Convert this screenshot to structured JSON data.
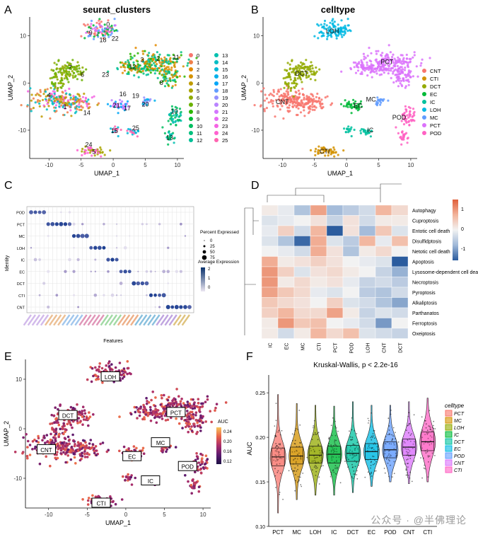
{
  "panels": {
    "A": {
      "letter": "A",
      "title": "seurat_clusters",
      "xlabel": "UMAP_1",
      "ylabel": "UMAP_2",
      "xticks": [
        "-10",
        "-5",
        "0",
        "5",
        "10"
      ],
      "yticks": [
        "10",
        "0",
        "-10"
      ],
      "legend": [
        "0",
        "1",
        "2",
        "3",
        "4",
        "5",
        "6",
        "7",
        "8",
        "9",
        "10",
        "11",
        "12",
        "13",
        "14",
        "15",
        "16",
        "17",
        "18",
        "19",
        "20",
        "21",
        "22",
        "23",
        "24",
        "25"
      ],
      "legend_colors": [
        "#F8766D",
        "#EF7F49",
        "#E38900",
        "#D49200",
        "#C09B00",
        "#A9A400",
        "#8FAA00",
        "#6BB100",
        "#2CB600",
        "#00BA38",
        "#00BD5F",
        "#00BF7D",
        "#00C097",
        "#00C0AF",
        "#00BDC4",
        "#00B8D8",
        "#00B0EB",
        "#00A6F8",
        "#619CFF",
        "#9590FF",
        "#B983FF",
        "#D376FF",
        "#E76BF3",
        "#F564E3",
        "#FF61CF",
        "#FF64B0"
      ],
      "labels": [
        "0",
        "22",
        "9",
        "18",
        "3",
        "2",
        "11",
        "12",
        "7",
        "6",
        "23",
        "8",
        "4",
        "1",
        "16",
        "19",
        "21",
        "17",
        "20",
        "14",
        "10",
        "25",
        "15",
        "13",
        "24",
        "5"
      ]
    },
    "B": {
      "letter": "B",
      "title": "celltype",
      "xlabel": "UMAP_1",
      "ylabel": "UMAP_2",
      "xticks": [
        "-10",
        "-5",
        "0",
        "5",
        "10"
      ],
      "yticks": [
        "10",
        "0",
        "-10"
      ],
      "legend": [
        "CNT",
        "CTI",
        "DCT",
        "EC",
        "IC",
        "LOH",
        "MC",
        "PCT",
        "POD"
      ],
      "legend_colors": [
        "#F8766D",
        "#D39200",
        "#93AA00",
        "#00BA38",
        "#00C19F",
        "#00B9E3",
        "#619CFF",
        "#DB72FB",
        "#FF61C3"
      ],
      "labels": [
        "LOH",
        "PCT",
        "DCT",
        "CNT",
        "MC",
        "EC",
        "POD",
        "IC",
        "CTI"
      ]
    },
    "C": {
      "letter": "C",
      "ylabel": "Identity",
      "xlabel": "Features",
      "rows": [
        "POD",
        "PCT",
        "MC",
        "LOH",
        "IC",
        "EC",
        "DCT",
        "CTI",
        "CNT"
      ],
      "legend_pct_title": "Percent Expressed",
      "legend_pct_values": [
        "0",
        "25",
        "50",
        "75"
      ],
      "legend_expr_title": "Average Expression",
      "legend_expr_values": [
        "2",
        "1",
        "0"
      ]
    },
    "D": {
      "letter": "D",
      "rows": [
        "Autophagy",
        "Cuproptosis",
        "Entotic cell death",
        "Disulfidptosis",
        "Netotic cell death",
        "Apoptosis",
        "Lysosome-dependent cell death",
        "Necroptosis",
        "Pyroptosis",
        "Alkaliptosis",
        "Parthanatos",
        "Ferroptosis",
        "Oxeiptosis"
      ],
      "cols": [
        "IC",
        "EC",
        "MC",
        "CTI",
        "PCT",
        "POD",
        "LOH",
        "CNT",
        "DCT"
      ],
      "legend_values": [
        "1",
        "0",
        "-1"
      ]
    },
    "E": {
      "letter": "E",
      "xlabel": "UMAP_1",
      "ylabel": "UMAP_2",
      "xticks": [
        "-10",
        "-5",
        "0",
        "5",
        "10"
      ],
      "yticks": [
        "10",
        "0",
        "-10"
      ],
      "legend_title": "AUC",
      "legend_values": [
        "0.24",
        "0.20",
        "0.16",
        "0.12"
      ],
      "labels": [
        "LOH",
        "DCT",
        "PCT",
        "CNT",
        "MC",
        "EC",
        "POD",
        "IC",
        "CTI"
      ]
    },
    "F": {
      "letter": "F",
      "title": "Kruskal-Wallis, p < 2.2e-16",
      "ylabel": "AUC",
      "yticks": [
        "0.25",
        "0.20",
        "0.15",
        "0.10"
      ],
      "legend_title": "celltype",
      "watermark": "公众号 · @半佛理论"
    }
  },
  "chart_data": [
    {
      "type": "scatter",
      "title": "seurat_clusters",
      "xlabel": "UMAP_1",
      "ylabel": "UMAP_2",
      "xlim": [
        -13,
        11
      ],
      "ylim": [
        -16,
        14
      ]
    },
    {
      "type": "scatter",
      "title": "celltype",
      "xlabel": "UMAP_1",
      "ylabel": "UMAP_2",
      "xlim": [
        -13,
        11
      ],
      "ylim": [
        -16,
        14
      ]
    },
    {
      "type": "heatmap",
      "title": "",
      "rows": [
        "Autophagy",
        "Cuproptosis",
        "Entotic cell death",
        "Disulfidptosis",
        "Netotic cell death",
        "Apoptosis",
        "Lysosome-dependent cell death",
        "Necroptosis",
        "Pyroptosis",
        "Alkaliptosis",
        "Parthanatos",
        "Ferroptosis",
        "Oxeiptosis"
      ],
      "cols": [
        "IC",
        "EC",
        "MC",
        "CTI",
        "PCT",
        "POD",
        "LOH",
        "CNT",
        "DCT"
      ],
      "values": [
        [
          0.1,
          -0.1,
          -0.6,
          0.9,
          -0.7,
          -0.5,
          -0.3,
          0.7,
          0.3
        ],
        [
          -0.2,
          -0.1,
          0.0,
          0.2,
          -0.4,
          0.2,
          -0.3,
          0.1,
          0.1
        ],
        [
          -0.1,
          0.4,
          -0.3,
          0.7,
          -1.6,
          0.2,
          -0.7,
          0.5,
          -0.2
        ],
        [
          -0.2,
          -0.6,
          -1.4,
          0.8,
          -0.2,
          -0.5,
          0.7,
          -0.1,
          0.6
        ],
        [
          0.0,
          -0.1,
          -0.3,
          0.8,
          0.2,
          -0.6,
          0.1,
          0.3,
          0.0
        ],
        [
          0.8,
          0.1,
          0.2,
          0.4,
          0.2,
          0.0,
          -0.1,
          -0.2,
          -1.5
        ],
        [
          1.0,
          0.4,
          -0.2,
          0.2,
          0.3,
          0.1,
          0.0,
          -0.4,
          -0.8
        ],
        [
          1.0,
          0.1,
          0.3,
          0.1,
          0.2,
          -0.1,
          -0.4,
          -0.3,
          -0.5
        ],
        [
          0.9,
          0.5,
          0.3,
          -0.1,
          -0.2,
          0.0,
          -0.5,
          -0.6,
          -0.3
        ],
        [
          0.5,
          0.3,
          0.2,
          0.0,
          0.4,
          -0.2,
          -0.3,
          -0.6,
          -0.9
        ],
        [
          0.4,
          0.7,
          0.3,
          0.3,
          0.9,
          0.1,
          -0.4,
          -0.2,
          -0.3
        ],
        [
          0.1,
          1.0,
          0.5,
          0.6,
          0.0,
          -0.1,
          -0.3,
          -1.0,
          0.0
        ],
        [
          0.1,
          -0.3,
          0.1,
          0.7,
          0.3,
          0.6,
          -0.2,
          -0.3,
          -0.4
        ]
      ],
      "colorbar": [
        -1.5,
        1.5
      ]
    },
    {
      "type": "violin",
      "title": "Kruskal-Wallis, p < 2.2e-16",
      "ylabel": "AUC",
      "ylim": [
        0.1,
        0.27
      ],
      "categories": [
        "PCT",
        "MC",
        "LOH",
        "IC",
        "DCT",
        "EC",
        "POD",
        "CNT",
        "CTI"
      ],
      "colors": [
        "#F8766D",
        "#D39200",
        "#93AA00",
        "#00BA38",
        "#00C19F",
        "#00B9E3",
        "#619CFF",
        "#DB72FB",
        "#FF61C3"
      ],
      "median": [
        0.178,
        0.179,
        0.18,
        0.181,
        0.182,
        0.184,
        0.186,
        0.189,
        0.195
      ],
      "q1": [
        0.168,
        0.17,
        0.171,
        0.171,
        0.173,
        0.175,
        0.177,
        0.18,
        0.185
      ],
      "q3": [
        0.188,
        0.189,
        0.19,
        0.19,
        0.191,
        0.193,
        0.195,
        0.198,
        0.206
      ],
      "min": [
        0.115,
        0.13,
        0.135,
        0.135,
        0.138,
        0.145,
        0.15,
        0.148,
        0.15
      ],
      "max": [
        0.248,
        0.238,
        0.236,
        0.235,
        0.24,
        0.236,
        0.236,
        0.24,
        0.244
      ]
    }
  ]
}
